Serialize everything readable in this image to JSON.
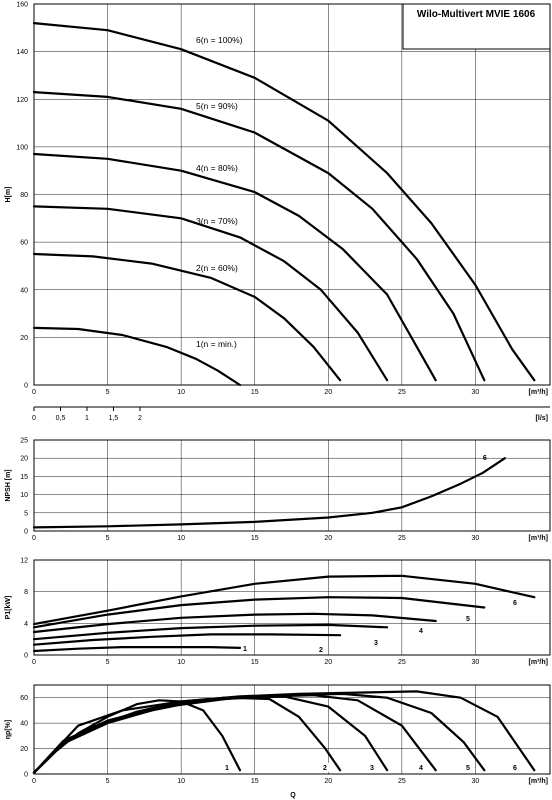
{
  "chart_data": [
    {
      "type": "line",
      "title": "Wilo-Multivert MVIE 1606",
      "ylabel": "H[m]",
      "xlabel": "",
      "x_unit": "[m³/h]",
      "xlim": [
        0,
        35
      ],
      "ylim": [
        0,
        160
      ],
      "x_ticks": [
        "0",
        "5",
        "10",
        "15",
        "20",
        "25",
        "30"
      ],
      "y_ticks": [
        "0",
        "20",
        "40",
        "60",
        "80",
        "100",
        "120",
        "140",
        "160"
      ],
      "secondary_x_unit": "[l/s]",
      "secondary_x_ticks": [
        {
          "label": "0",
          "value": 0
        },
        {
          "label": "0,5",
          "value": 0.5
        },
        {
          "label": "1",
          "value": 1
        },
        {
          "label": "1,5",
          "value": 1.5
        },
        {
          "label": "2",
          "value": 2
        }
      ],
      "series": [
        {
          "name": "1(n = min.)",
          "x": [
            0,
            3,
            6,
            9,
            11,
            12.5,
            14
          ],
          "y": [
            24,
            23.5,
            21,
            16,
            11,
            6,
            0
          ]
        },
        {
          "name": "2(n = 60%)",
          "x": [
            0,
            4,
            8,
            12,
            15,
            17,
            19,
            20.8
          ],
          "y": [
            55,
            54,
            51,
            45,
            37,
            28,
            16,
            2
          ]
        },
        {
          "name": "3(n = 70%)",
          "x": [
            0,
            5,
            10,
            14,
            17,
            19.5,
            22,
            24
          ],
          "y": [
            75,
            74,
            70,
            62,
            52,
            40,
            22,
            2
          ]
        },
        {
          "name": "4(n = 80%)",
          "x": [
            0,
            5,
            10,
            15,
            18,
            21,
            24,
            27.3
          ],
          "y": [
            97,
            95,
            90,
            81,
            71,
            57,
            38,
            2
          ]
        },
        {
          "name": "5(n = 90%)",
          "x": [
            0,
            5,
            10,
            15,
            20,
            23,
            26,
            28.5,
            30.6
          ],
          "y": [
            123,
            121,
            116,
            106,
            89,
            74,
            53,
            30,
            2
          ]
        },
        {
          "name": "6(n = 100%)",
          "x": [
            0,
            5,
            10,
            15,
            20,
            24,
            27,
            30,
            32.5,
            34
          ],
          "y": [
            152,
            149,
            141,
            129,
            111,
            89,
            68,
            42,
            15,
            2
          ]
        }
      ]
    },
    {
      "type": "line",
      "ylabel": "NPSH [m]",
      "x_unit": "[m³/h]",
      "xlim": [
        0,
        35
      ],
      "ylim": [
        0,
        25
      ],
      "x_ticks": [
        "0",
        "5",
        "10",
        "15",
        "20",
        "25",
        "30"
      ],
      "y_ticks": [
        "0",
        "5",
        "10",
        "15",
        "20",
        "25"
      ],
      "series": [
        {
          "name": "6",
          "x": [
            0,
            5,
            10,
            15,
            20,
            23,
            25,
            27,
            29,
            30.5,
            32
          ],
          "y": [
            1.0,
            1.3,
            1.8,
            2.5,
            3.7,
            5.0,
            6.5,
            9.5,
            13,
            16,
            20
          ]
        }
      ]
    },
    {
      "type": "line",
      "ylabel": "P1[kW]",
      "x_unit": "[m³/h]",
      "xlim": [
        0,
        35
      ],
      "ylim": [
        0,
        12
      ],
      "x_ticks": [
        "0",
        "5",
        "10",
        "15",
        "20",
        "25",
        "30"
      ],
      "y_ticks": [
        "0",
        "4",
        "8",
        "12"
      ],
      "series": [
        {
          "name": "1",
          "x": [
            0,
            3,
            6,
            9,
            12,
            14
          ],
          "y": [
            0.5,
            0.8,
            1.0,
            1.0,
            1.0,
            0.9
          ]
        },
        {
          "name": "2",
          "x": [
            0,
            4,
            8,
            12,
            16,
            20.8
          ],
          "y": [
            1.3,
            1.9,
            2.3,
            2.6,
            2.6,
            2.5
          ]
        },
        {
          "name": "3",
          "x": [
            0,
            5,
            10,
            15,
            20,
            24
          ],
          "y": [
            2.0,
            2.8,
            3.4,
            3.7,
            3.8,
            3.5
          ]
        },
        {
          "name": "4",
          "x": [
            0,
            5,
            10,
            15,
            19,
            23,
            27.3
          ],
          "y": [
            2.9,
            3.9,
            4.7,
            5.1,
            5.2,
            5.0,
            4.3
          ]
        },
        {
          "name": "5",
          "x": [
            0,
            5,
            10,
            15,
            20,
            25,
            30.6
          ],
          "y": [
            3.5,
            5.1,
            6.3,
            7.0,
            7.3,
            7.2,
            6.0
          ]
        },
        {
          "name": "6",
          "x": [
            0,
            5,
            10,
            15,
            20,
            25,
            30,
            34
          ],
          "y": [
            3.9,
            5.6,
            7.4,
            9.0,
            9.9,
            10.0,
            9.0,
            7.3
          ]
        }
      ]
    },
    {
      "type": "line",
      "ylabel": "ηp[%]",
      "xlabel": "Q",
      "x_unit": "[m³/h]",
      "xlim": [
        0,
        35
      ],
      "ylim": [
        0,
        70
      ],
      "x_ticks": [
        "0",
        "5",
        "10",
        "15",
        "20",
        "25",
        "30"
      ],
      "y_ticks": [
        "0",
        "20",
        "40",
        "60"
      ],
      "series": [
        {
          "name": "1",
          "x": [
            0,
            1.5,
            3,
            5,
            7,
            8.5,
            10,
            11.5,
            12.8,
            14
          ],
          "y": [
            1,
            18,
            32,
            45,
            55,
            58,
            57,
            50,
            30,
            3
          ]
        },
        {
          "name": "2",
          "x": [
            0,
            2,
            4,
            7,
            10,
            13,
            16,
            18,
            19.8,
            20.8
          ],
          "y": [
            1,
            24,
            37,
            49,
            57,
            60,
            59,
            45,
            20,
            3
          ]
        },
        {
          "name": "3",
          "x": [
            0,
            2,
            5,
            8,
            11,
            14,
            17,
            20,
            22.5,
            24
          ],
          "y": [
            1,
            24,
            40,
            50,
            57,
            60,
            61,
            53,
            30,
            3
          ]
        },
        {
          "name": "4",
          "x": [
            0,
            2,
            5,
            9,
            13,
            16,
            19,
            22,
            25,
            27.3
          ],
          "y": [
            1,
            25,
            41,
            53,
            59,
            61,
            62,
            58,
            38,
            3
          ]
        },
        {
          "name": "5",
          "x": [
            0,
            2,
            5,
            9,
            13,
            17,
            21,
            24,
            27,
            29.2,
            30.6
          ],
          "y": [
            1,
            26,
            42,
            54,
            60,
            62,
            63,
            60,
            48,
            25,
            3
          ]
        },
        {
          "name": "6",
          "x": [
            0,
            3,
            6,
            10,
            14,
            18,
            22,
            26,
            29,
            31.5,
            34
          ],
          "y": [
            1,
            38,
            50,
            57,
            61,
            63,
            64,
            65,
            60,
            45,
            3
          ]
        }
      ]
    }
  ]
}
